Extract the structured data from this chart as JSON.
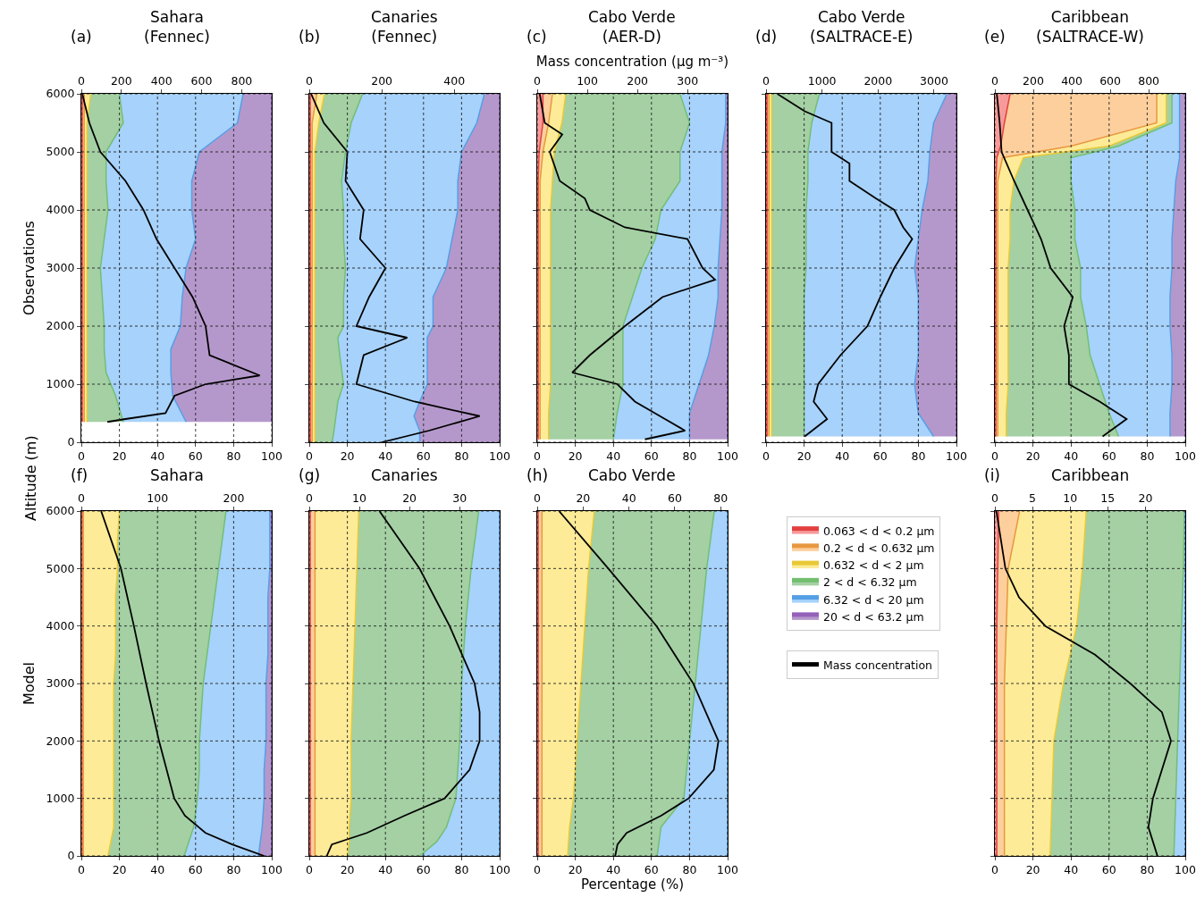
{
  "chart_data": [
    {
      "type": "area",
      "stacked": true,
      "orientation": "horizontal",
      "title": "Sahara\n(Fennec)",
      "annotations": [
        "(a)",
        "Altitude (m)"
      ],
      "ylabel": "Observations",
      "legend": "bottom right",
      "xlim": [
        0,
        100
      ],
      "xticks": [
        0,
        20,
        40,
        60,
        80,
        100
      ],
      "ylim": [
        0,
        6000
      ],
      "yticks": [
        0,
        1000,
        2000,
        3000,
        4000,
        5000,
        6000
      ],
      "x2lim": [
        0,
        950
      ],
      "x2ticks": [
        0,
        200,
        400,
        600,
        800
      ],
      "grid": true,
      "marker": "none",
      "line_style": "solid",
      "x": [
        350,
        800,
        1200,
        1600,
        2000,
        2500,
        3000,
        3500,
        4000,
        4500,
        5000,
        5500,
        6000
      ],
      "series": [
        {
          "name": "0.063 < d < 0.2 μm",
          "color": "#f79a9a",
          "values": [
            0.5,
            0.5,
            0.5,
            0.5,
            0.5,
            0.5,
            0.5,
            0.5,
            0.5,
            0.5,
            0.5,
            0.5,
            0.5
          ]
        },
        {
          "name": "0.2 < d < 0.632 μm",
          "color": "#fdcf9d",
          "values": [
            1,
            1,
            1,
            1,
            1,
            1,
            1,
            1,
            1,
            1,
            1,
            1,
            1
          ]
        },
        {
          "name": "0.632 < d < 2 μm",
          "color": "#fdeb97",
          "values": [
            1.5,
            1.5,
            1.5,
            1.5,
            1.5,
            1.5,
            1.5,
            1.5,
            1.5,
            1.5,
            1.5,
            1.5,
            3.5
          ]
        },
        {
          "name": "2 < d < 6.32 μm",
          "color": "#a4d0a3",
          "values": [
            19,
            15,
            10,
            9,
            9,
            8,
            7,
            9,
            11,
            10,
            10,
            19,
            15
          ]
        },
        {
          "name": "6.32 < d < 20 μm",
          "color": "#a7d2fb",
          "values": [
            33,
            30,
            34,
            35,
            40,
            42,
            45,
            48,
            44,
            45,
            49,
            60,
            65
          ]
        },
        {
          "name": "20 < d < 63.2 μm",
          "color": "#b598cb",
          "values": [
            45,
            52,
            53,
            53,
            48,
            47,
            45,
            40,
            42,
            42,
            38,
            18,
            15
          ]
        },
        {
          "name": "Mass concentration",
          "type": "line",
          "axis": "x2",
          "color": "#000000",
          "x": [
            350,
            400,
            500,
            800,
            1000,
            1150,
            1500,
            2000,
            2500,
            3000,
            3500,
            4000,
            4500,
            5000,
            5500,
            6000
          ],
          "values": [
            130,
            220,
            420,
            465,
            620,
            890,
            640,
            620,
            555,
            465,
            375,
            310,
            220,
            95,
            40,
            5
          ]
        }
      ]
    },
    {
      "type": "area",
      "stacked": true,
      "orientation": "horizontal",
      "title": "Canaries\n(Fennec)",
      "annotations": [
        "(b)"
      ],
      "tick_labels": "x",
      "xlim": [
        0,
        100
      ],
      "xticks": [
        0,
        20,
        40,
        60,
        80,
        100
      ],
      "ylim": [
        0,
        6000
      ],
      "yticks": [
        0,
        1000,
        2000,
        3000,
        4000,
        5000,
        6000
      ],
      "x2lim": [
        0,
        525
      ],
      "x2ticks": [
        0,
        200,
        400
      ],
      "grid": true,
      "marker": "none",
      "line_style": "solid",
      "x": [
        0,
        200,
        450,
        700,
        1000,
        1500,
        1800,
        2000,
        2500,
        3000,
        3500,
        4000,
        4500,
        5000,
        5500,
        6000
      ],
      "series": [
        {
          "name": "0.063 < d < 0.2 μm",
          "color": "#f79a9a",
          "values": [
            0.5,
            0.5,
            0.5,
            0.5,
            0.5,
            0.5,
            0.5,
            0.5,
            0.5,
            0.5,
            0.5,
            0.5,
            0.5,
            0.5,
            0.5,
            0.5
          ]
        },
        {
          "name": "0.2 < d < 0.632 μm",
          "color": "#fdcf9d",
          "values": [
            1,
            1,
            1,
            1,
            1,
            1,
            1,
            1,
            1,
            1,
            1,
            1,
            1,
            1,
            1,
            3.5
          ]
        },
        {
          "name": "0.632 < d < 2 μm",
          "color": "#fdeb97",
          "values": [
            1.5,
            1.5,
            1.5,
            1.5,
            1.5,
            1.5,
            1.5,
            1.5,
            1.5,
            1.5,
            1.5,
            1.5,
            1.5,
            1.5,
            3.5,
            4
          ]
        },
        {
          "name": "2 < d < 6.32 μm",
          "color": "#a4d0a3",
          "values": [
            9,
            10,
            11,
            12,
            15,
            13,
            12,
            15,
            15,
            16,
            15,
            15,
            14,
            16,
            17,
            20
          ]
        },
        {
          "name": "6.32 < d < 20 μm",
          "color": "#a7d2fb",
          "values": [
            46,
            45,
            41,
            43,
            44,
            46,
            47,
            47,
            47,
            53,
            57,
            60,
            61,
            61,
            66,
            64
          ]
        },
        {
          "name": "20 < d < 63.2 μm",
          "color": "#b598cb",
          "values": [
            42,
            42,
            45,
            42,
            38,
            38,
            38,
            35,
            35,
            28,
            25,
            22,
            22,
            20,
            12,
            8
          ]
        },
        {
          "name": "Mass concentration",
          "type": "line",
          "axis": "x2",
          "color": "#000000",
          "x": [
            0,
            200,
            450,
            700,
            1000,
            1500,
            1800,
            2000,
            2500,
            3000,
            3500,
            4000,
            4500,
            5000,
            5500,
            6000
          ],
          "values": [
            200,
            330,
            470,
            290,
            130,
            150,
            270,
            130,
            165,
            210,
            140,
            150,
            100,
            105,
            40,
            5
          ]
        }
      ]
    },
    {
      "type": "area",
      "stacked": true,
      "orientation": "horizontal",
      "title": "Cabo Verde\n(AER-D)",
      "annotations": [
        "(c)"
      ],
      "x2label": "Mass concentration (μg m⁻³)",
      "tick_labels": "x",
      "xlim": [
        0,
        100
      ],
      "xticks": [
        0,
        20,
        40,
        60,
        80,
        100
      ],
      "ylim": [
        0,
        6000
      ],
      "yticks": [
        0,
        1000,
        2000,
        3000,
        4000,
        5000,
        6000
      ],
      "x2lim": [
        0,
        380
      ],
      "x2ticks": [
        0,
        100,
        200,
        300
      ],
      "grid": true,
      "marker": "none",
      "line_style": "solid",
      "x": [
        50,
        500,
        1000,
        1500,
        2000,
        2500,
        3000,
        3500,
        4000,
        4500,
        5000,
        5500,
        6000
      ],
      "series": [
        {
          "name": "0.063 < d < 0.2 μm",
          "color": "#f79a9a",
          "values": [
            0.5,
            0.5,
            0.5,
            0.5,
            0.5,
            0.5,
            0.5,
            0.5,
            0.5,
            0.5,
            1,
            3,
            3
          ]
        },
        {
          "name": "0.2 < d < 0.632 μm",
          "color": "#fdcf9d",
          "values": [
            1,
            1,
            1,
            1,
            1,
            1,
            1,
            1,
            1,
            1,
            2,
            3,
            5
          ]
        },
        {
          "name": "0.632 < d < 2 μm",
          "color": "#fdeb97",
          "values": [
            4.5,
            4.5,
            5.5,
            5.5,
            5.5,
            5.5,
            5.5,
            5.5,
            5.5,
            6.5,
            6,
            7,
            7
          ]
        },
        {
          "name": "2 < d < 6.32 μm",
          "color": "#a4d0a3",
          "values": [
            34,
            36,
            38,
            38,
            38,
            43,
            48,
            55,
            58,
            67,
            66,
            67,
            60
          ]
        },
        {
          "name": "6.32 < d < 20 μm",
          "color": "#a7d2fb",
          "values": [
            40,
            38,
            40,
            45,
            48,
            45,
            40,
            34,
            32,
            22,
            22,
            19,
            24
          ]
        },
        {
          "name": "20 < d < 63.2 μm",
          "color": "#b598cb",
          "values": [
            20,
            20,
            15,
            10,
            7,
            5,
            5,
            4,
            3,
            3,
            3,
            1,
            1
          ]
        },
        {
          "name": "Mass concentration",
          "type": "line",
          "axis": "x2",
          "color": "#000000",
          "x": [
            50,
            200,
            400,
            700,
            1000,
            1200,
            1500,
            2000,
            2500,
            2800,
            3000,
            3500,
            3700,
            4000,
            4200,
            4500,
            5000,
            5300,
            5500,
            6000
          ],
          "values": [
            215,
            295,
            255,
            195,
            160,
            70,
            105,
            175,
            250,
            355,
            330,
            300,
            175,
            105,
            95,
            45,
            25,
            50,
            15,
            5
          ]
        }
      ]
    },
    {
      "type": "area",
      "stacked": true,
      "orientation": "horizontal",
      "title": "Cabo Verde\n(SALTRACE-E)",
      "annotations": [
        "(d)"
      ],
      "tick_labels": "x",
      "xlim": [
        0,
        100
      ],
      "xticks": [
        0,
        20,
        40,
        60,
        80,
        100
      ],
      "ylim": [
        0,
        6000
      ],
      "yticks": [
        0,
        1000,
        2000,
        3000,
        4000,
        5000,
        6000
      ],
      "x2lim": [
        0,
        3400
      ],
      "x2ticks": [
        0,
        1000,
        2000,
        3000
      ],
      "grid": true,
      "marker": "none",
      "line_style": "solid",
      "x": [
        100,
        500,
        1000,
        1500,
        2000,
        2500,
        3000,
        3500,
        4000,
        4500,
        5000,
        5500,
        6000
      ],
      "series": [
        {
          "name": "0.063 < d < 0.2 μm",
          "color": "#f79a9a",
          "values": [
            0.5,
            0.5,
            0.5,
            0.5,
            0.5,
            0.5,
            0.5,
            0.5,
            0.5,
            0.5,
            0.5,
            0.5,
            0.5
          ]
        },
        {
          "name": "0.2 < d < 0.632 μm",
          "color": "#fdcf9d",
          "values": [
            1,
            1,
            1,
            1,
            1,
            1,
            1,
            1,
            1,
            1,
            1,
            1,
            1
          ]
        },
        {
          "name": "0.632 < d < 2 μm",
          "color": "#fdeb97",
          "values": [
            1.5,
            1.5,
            1.5,
            1.5,
            1.5,
            1.5,
            1.5,
            1.5,
            1.5,
            1.5,
            1.5,
            1.5,
            1.5
          ]
        },
        {
          "name": "2 < d < 6.32 μm",
          "color": "#a4d0a3",
          "values": [
            17,
            17,
            17,
            17,
            17,
            17,
            18,
            18,
            18,
            19,
            19,
            21,
            25
          ]
        },
        {
          "name": "6.32 < d < 20 μm",
          "color": "#a7d2fb",
          "values": [
            68,
            60,
            58,
            60,
            60,
            60,
            57,
            59,
            61,
            63,
            64,
            64,
            67
          ]
        },
        {
          "name": "20 < d < 63.2 μm",
          "color": "#b598cb",
          "values": [
            12,
            20,
            22,
            20,
            20,
            20,
            22,
            20,
            18,
            15,
            14,
            12,
            5
          ]
        },
        {
          "name": "Mass concentration",
          "type": "line",
          "axis": "x2",
          "color": "#000000",
          "x": [
            100,
            400,
            700,
            1000,
            1500,
            2000,
            2500,
            3000,
            3500,
            3700,
            4000,
            4200,
            4500,
            4800,
            5000,
            5500,
            5700,
            6000
          ],
          "values": [
            690,
            1090,
            850,
            930,
            1330,
            1810,
            2040,
            2290,
            2610,
            2450,
            2290,
            1960,
            1490,
            1490,
            1170,
            1170,
            690,
            200
          ]
        }
      ]
    },
    {
      "type": "area",
      "stacked": true,
      "orientation": "horizontal",
      "title": "Caribbean\n(SALTRACE-W)",
      "annotations": [
        "(e)"
      ],
      "tick_labels": "x",
      "xlim": [
        0,
        100
      ],
      "xticks": [
        0,
        20,
        40,
        60,
        80,
        100
      ],
      "ylim": [
        0,
        6000
      ],
      "yticks": [
        0,
        1000,
        2000,
        3000,
        4000,
        5000,
        6000
      ],
      "x2lim": [
        0,
        990
      ],
      "x2ticks": [
        0,
        200,
        400,
        600,
        800
      ],
      "grid": true,
      "marker": "none",
      "line_style": "solid",
      "x": [
        100,
        500,
        1000,
        1500,
        2000,
        2500,
        3000,
        3500,
        4000,
        4500,
        4900,
        5100,
        5500,
        6000
      ],
      "series": [
        {
          "name": "0.063 < d < 0.2 μm",
          "color": "#f79a9a",
          "values": [
            0.5,
            0.5,
            0.5,
            0.5,
            0.5,
            0.5,
            0.5,
            0.5,
            0.5,
            0.5,
            1,
            3,
            5,
            8
          ]
        },
        {
          "name": "0.2 < d < 0.632 μm",
          "color": "#fdcf9d",
          "values": [
            1,
            1,
            1,
            1,
            1,
            1,
            1,
            1,
            1,
            1,
            3,
            37,
            80,
            77
          ]
        },
        {
          "name": "0.632 < d < 2 μm",
          "color": "#fdeb97",
          "values": [
            4.5,
            4.5,
            5.5,
            5.5,
            5.5,
            5.5,
            5.5,
            6.5,
            6.5,
            8.5,
            11,
            20,
            5,
            5
          ]
        },
        {
          "name": "2 < d < 6.32 μm",
          "color": "#a4d0a3",
          "values": [
            59,
            54,
            48,
            43,
            41,
            38,
            38,
            34,
            34,
            30,
            25,
            5,
            3,
            3
          ]
        },
        {
          "name": "6.32 < d < 20 μm",
          "color": "#a7d2fb",
          "values": [
            27,
            32,
            38,
            43,
            44,
            47,
            48,
            51,
            52,
            55,
            57,
            32,
            4,
            4
          ]
        },
        {
          "name": "20 < d < 63.2 μm",
          "color": "#b598cb",
          "values": [
            8,
            8,
            7,
            7,
            8,
            8,
            7,
            7,
            6,
            5,
            3,
            3,
            3,
            3
          ]
        },
        {
          "name": "Mass concentration",
          "type": "line",
          "axis": "x2",
          "color": "#000000",
          "x": [
            100,
            400,
            700,
            1000,
            1500,
            2000,
            2500,
            3000,
            3500,
            4000,
            4500,
            5000,
            5500,
            6000
          ],
          "values": [
            560,
            685,
            545,
            385,
            385,
            360,
            405,
            290,
            240,
            170,
            100,
            35,
            25,
            10
          ]
        }
      ]
    },
    {
      "type": "area",
      "stacked": true,
      "orientation": "horizontal",
      "title": "Sahara",
      "annotations": [
        "(f)"
      ],
      "ylabel": "Model",
      "xlim": [
        0,
        100
      ],
      "xticks": [
        0,
        20,
        40,
        60,
        80,
        100
      ],
      "ylim": [
        0,
        6000
      ],
      "yticks": [
        0,
        1000,
        2000,
        3000,
        4000,
        5000,
        6000
      ],
      "x2lim": [
        0,
        250
      ],
      "x2ticks": [
        0,
        100,
        200
      ],
      "grid": true,
      "marker": "none",
      "line_style": "solid",
      "x": [
        0,
        500,
        1000,
        1500,
        2000,
        2500,
        3000,
        3500,
        4000,
        4500,
        5000,
        5500,
        6000
      ],
      "series": [
        {
          "name": "0.063 < d < 0.2 μm",
          "color": "#f79a9a",
          "values": [
            0.5,
            0.5,
            0.5,
            0.5,
            0.5,
            0.5,
            0.5,
            0.5,
            0.5,
            0.5,
            0.5,
            0.5,
            0.5
          ]
        },
        {
          "name": "0.2 < d < 0.632 μm",
          "color": "#fdcf9d",
          "values": [
            0.5,
            0.5,
            0.5,
            0.5,
            0.5,
            0.5,
            0.5,
            0.5,
            0.5,
            0.5,
            0.5,
            0.5,
            0.5
          ]
        },
        {
          "name": "0.632 < d < 2 μm",
          "color": "#fdeb97",
          "values": [
            13,
            16,
            16,
            16,
            16,
            16,
            16,
            17,
            17,
            17,
            18,
            18,
            19
          ]
        },
        {
          "name": "2 < d < 6.32 μm",
          "color": "#a4d0a3",
          "values": [
            40,
            42,
            44,
            45,
            45,
            46,
            47,
            48,
            50,
            52,
            53,
            55,
            56
          ]
        },
        {
          "name": "6.32 < d < 20 μm",
          "color": "#a7d2fb",
          "values": [
            39,
            36,
            35,
            34,
            35,
            34,
            33,
            32,
            30,
            28,
            27,
            25,
            23
          ]
        },
        {
          "name": "20 < d < 63.2 μm",
          "color": "#b598cb",
          "values": [
            7,
            5,
            4,
            4,
            3,
            3,
            3,
            2,
            2,
            2,
            1,
            1,
            1
          ]
        },
        {
          "name": "Mass concentration",
          "type": "line",
          "axis": "x2",
          "color": "#000000",
          "x": [
            0,
            200,
            400,
            700,
            1000,
            2000,
            3000,
            4000,
            5000,
            6000
          ],
          "values": [
            240,
            198,
            163,
            136,
            122,
            102,
            85,
            69,
            52,
            26
          ]
        }
      ]
    },
    {
      "type": "area",
      "stacked": true,
      "orientation": "horizontal",
      "title": "Canaries",
      "annotations": [
        "(g)"
      ],
      "tick_labels": "x",
      "xlim": [
        0,
        100
      ],
      "xticks": [
        0,
        20,
        40,
        60,
        80,
        100
      ],
      "ylim": [
        0,
        6000
      ],
      "yticks": [
        0,
        1000,
        2000,
        3000,
        4000,
        5000,
        6000
      ],
      "x2lim": [
        0,
        38
      ],
      "x2ticks": [
        0,
        10,
        20,
        30
      ],
      "grid": true,
      "marker": "none",
      "line_style": "solid",
      "x": [
        0,
        250,
        500,
        1000,
        1500,
        2000,
        3000,
        4000,
        5000,
        6000
      ],
      "series": [
        {
          "name": "0.063 < d < 0.2 μm",
          "color": "#f79a9a",
          "values": [
            0.5,
            0.5,
            0.5,
            0.5,
            0.5,
            0.5,
            0.5,
            0.5,
            0.5,
            0.5
          ]
        },
        {
          "name": "0.2 < d < 0.632 μm",
          "color": "#fdcf9d",
          "values": [
            2.5,
            2.5,
            2.5,
            2.5,
            2.5,
            2.5,
            2.5,
            2.5,
            2.5,
            2.5
          ]
        },
        {
          "name": "0.632 < d < 2 μm",
          "color": "#fdeb97",
          "values": [
            17,
            18,
            18,
            19,
            19,
            19,
            20,
            21,
            22,
            23
          ]
        },
        {
          "name": "2 < d < 6.32 μm",
          "color": "#a4d0a3",
          "values": [
            38,
            46,
            51,
            55,
            56,
            57,
            57,
            58,
            60,
            63
          ]
        },
        {
          "name": "6.32 < d < 20 μm",
          "color": "#a7d2fb",
          "values": [
            42,
            33,
            28,
            23,
            22,
            21,
            20,
            18,
            15,
            11
          ]
        },
        {
          "name": "Mass concentration",
          "type": "line",
          "axis": "x2",
          "color": "#000000",
          "x": [
            0,
            200,
            400,
            700,
            1000,
            1500,
            2000,
            2500,
            3000,
            4000,
            5000,
            6000
          ],
          "values": [
            3.5,
            4.5,
            11.5,
            19,
            27,
            32,
            34,
            34,
            33,
            28,
            22,
            14
          ]
        }
      ]
    },
    {
      "type": "area",
      "stacked": true,
      "orientation": "horizontal",
      "title": "Cabo Verde",
      "annotations": [
        "(h)"
      ],
      "xlabel": "Percentage (%)",
      "tick_labels": "x",
      "xlim": [
        0,
        100
      ],
      "xticks": [
        0,
        20,
        40,
        60,
        80,
        100
      ],
      "ylim": [
        0,
        6000
      ],
      "yticks": [
        0,
        1000,
        2000,
        3000,
        4000,
        5000,
        6000
      ],
      "x2lim": [
        0,
        83
      ],
      "x2ticks": [
        0,
        20,
        40,
        60,
        80
      ],
      "grid": true,
      "marker": "none",
      "line_style": "solid",
      "x": [
        0,
        500,
        1000,
        2000,
        3000,
        4000,
        5000,
        6000
      ],
      "series": [
        {
          "name": "0.063 < d < 0.2 μm",
          "color": "#f79a9a",
          "values": [
            0.5,
            0.5,
            0.5,
            0.5,
            0.5,
            0.5,
            0.5,
            0.5
          ]
        },
        {
          "name": "0.2 < d < 0.632 μm",
          "color": "#fdcf9d",
          "values": [
            2,
            2,
            2,
            2,
            2,
            2,
            2,
            2
          ]
        },
        {
          "name": "0.632 < d < 2 μm",
          "color": "#fdeb97",
          "values": [
            13.5,
            14.5,
            16.5,
            18.5,
            20.5,
            22.5,
            24.5,
            27.5
          ]
        },
        {
          "name": "2 < d < 6.32 μm",
          "color": "#a4d0a3",
          "values": [
            47,
            48,
            58,
            59,
            60,
            61,
            62,
            63
          ]
        },
        {
          "name": "6.32 < d < 20 μm",
          "color": "#a7d2fb",
          "values": [
            37,
            35,
            23,
            20,
            17,
            14,
            11,
            7
          ]
        },
        {
          "name": "Mass concentration",
          "type": "line",
          "axis": "x2",
          "color": "#000000",
          "x": [
            0,
            200,
            400,
            700,
            1000,
            1500,
            2000,
            3000,
            4000,
            5000,
            6000
          ],
          "values": [
            34,
            35,
            39,
            54,
            66,
            77,
            79,
            68,
            52,
            31,
            9.5
          ]
        }
      ]
    },
    {
      "type": "area",
      "stacked": true,
      "orientation": "horizontal",
      "title": "Caribbean",
      "annotations": [
        "(i)"
      ],
      "tick_labels": "x",
      "xlim": [
        0,
        100
      ],
      "xticks": [
        0,
        20,
        40,
        60,
        80,
        100
      ],
      "ylim": [
        0,
        6000
      ],
      "yticks": [
        0,
        1000,
        2000,
        3000,
        4000,
        5000,
        6000
      ],
      "x2lim": [
        0,
        25.3
      ],
      "x2ticks": [
        0,
        5,
        10,
        15,
        20
      ],
      "grid": true,
      "marker": "none",
      "line_style": "solid",
      "x": [
        0,
        1000,
        2000,
        3000,
        4000,
        5000,
        6000
      ],
      "series": [
        {
          "name": "0.063 < d < 0.2 μm",
          "color": "#f79a9a",
          "values": [
            1,
            1,
            1,
            1,
            1,
            1.5,
            2
          ]
        },
        {
          "name": "0.2 < d < 0.632 μm",
          "color": "#fdcf9d",
          "values": [
            4,
            4,
            4,
            4,
            5,
            5.5,
            11
          ]
        },
        {
          "name": "0.632 < d < 2 μm",
          "color": "#fdeb97",
          "values": [
            24,
            25,
            26,
            31,
            37,
            39,
            35
          ]
        },
        {
          "name": "2 < d < 6.32 μm",
          "color": "#a4d0a3",
          "values": [
            65,
            65,
            65,
            61,
            55,
            53,
            51.5
          ]
        },
        {
          "name": "6.32 < d < 20 μm",
          "color": "#a7d2fb",
          "values": [
            6,
            5,
            4,
            3,
            2,
            1,
            0.5
          ]
        },
        {
          "name": "Mass concentration",
          "type": "line",
          "axis": "x2",
          "color": "#000000",
          "x": [
            0,
            500,
            1000,
            1500,
            2000,
            2500,
            3000,
            3500,
            4000,
            4500,
            5000,
            6000
          ],
          "values": [
            21.6,
            20.4,
            21,
            22.2,
            23.4,
            22.2,
            18,
            13.3,
            6.7,
            3.2,
            1.4,
            0.2
          ]
        }
      ]
    }
  ]
}
